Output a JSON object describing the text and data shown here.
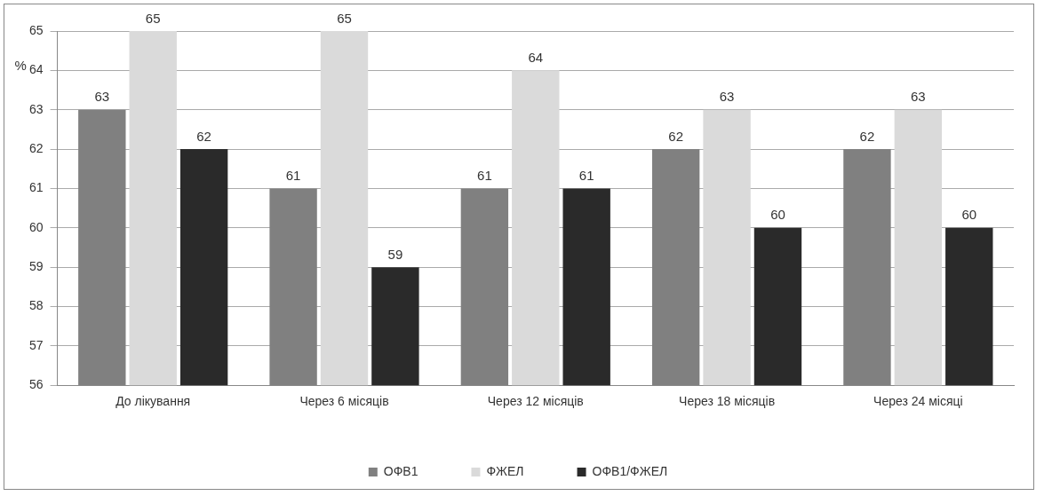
{
  "chart_data": {
    "type": "bar",
    "ylabel": "%",
    "categories": [
      "До лікування",
      "Через 6 місяців",
      "Через 12 місяців",
      "Через 18 місяців",
      "Через 24 місяці"
    ],
    "series": [
      {
        "name": "ОФВ1",
        "color": "#808080",
        "values": [
          63,
          61,
          61,
          62,
          62
        ]
      },
      {
        "name": "ФЖЕЛ",
        "color": "#dadada",
        "values": [
          65,
          65,
          64,
          63,
          63
        ]
      },
      {
        "name": "ОФВ1/ФЖЕЛ",
        "color": "#2a2a2a",
        "values": [
          62,
          59,
          61,
          60,
          60
        ]
      }
    ],
    "ylim": [
      56,
      65
    ],
    "yticks": [
      56,
      57,
      58,
      59,
      60,
      61,
      62,
      63,
      64,
      65
    ],
    "grid": "y",
    "legend": "bottom",
    "data_labels": true
  }
}
